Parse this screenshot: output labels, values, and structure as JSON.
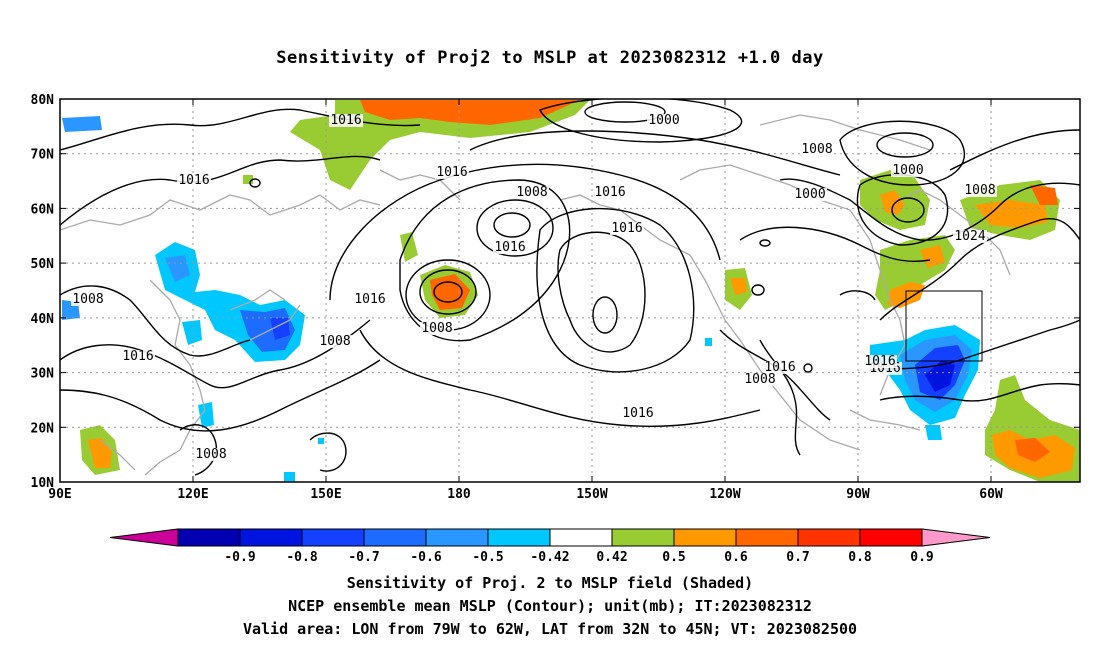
{
  "title": "Sensitivity of Proj2 to MSLP at 2023082312 +1.0 day",
  "lat_labels": [
    "80N",
    "70N",
    "60N",
    "50N",
    "40N",
    "30N",
    "20N",
    "10N"
  ],
  "lon_labels": [
    "90E",
    "120E",
    "150E",
    "180",
    "150W",
    "120W",
    "90W",
    "60W"
  ],
  "contour_labels": [
    "1016",
    "1000",
    "1008",
    "1000",
    "1016",
    "1016",
    "1008",
    "1016",
    "1000",
    "1008",
    "1016",
    "1024",
    "1016",
    "1008",
    "1008",
    "1016",
    "1016",
    "1008",
    "1016",
    "1016",
    "1008",
    "1016",
    "1008",
    "1016"
  ],
  "colorbar": {
    "labels": [
      "-0.9",
      "-0.8",
      "-0.7",
      "-0.6",
      "-0.5",
      "-0.42",
      "0.42",
      "0.5",
      "0.6",
      "0.7",
      "0.8",
      "0.9"
    ],
    "colors": [
      "#0000b0",
      "#0014e0",
      "#1440ff",
      "#1e6cff",
      "#2a96ff",
      "#00c8ff",
      "#ffffff",
      "#99cc33",
      "#ff9900",
      "#ff6600",
      "#ff3300",
      "#ff0000"
    ],
    "low_arrow_color": "#cc0099",
    "high_arrow_color": "#ff99cc"
  },
  "captions": [
    "Sensitivity of Proj. 2 to MSLP field (Shaded)",
    "NCEP ensemble mean MSLP (Contour); unit(mb); IT:2023082312",
    "Valid area: LON from 79W to 62W, LAT from 32N to 45N; VT: 2023082500"
  ]
}
